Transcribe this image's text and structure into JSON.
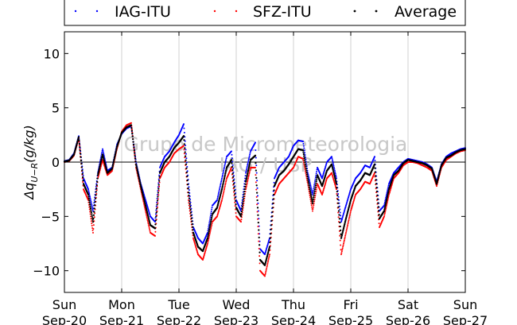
{
  "chart_data": {
    "type": "scatter",
    "title": "",
    "xlabel": "",
    "ylabel": "Δq_{U−R}(g/kg)",
    "ylabel_main": "Δq",
    "ylabel_sub": "U−R",
    "ylabel_rest": "(g/kg)",
    "ylim": [
      -12,
      12
    ],
    "xlim": [
      "2015-09-20",
      "2015-09-27"
    ],
    "yticks": [
      -10,
      -5,
      0,
      5,
      10
    ],
    "yticklabels": [
      "−10",
      "−5",
      "0",
      "5",
      "10"
    ],
    "xticks": [
      {
        "day": "Sun",
        "date": "Sep-20"
      },
      {
        "day": "Mon",
        "date": "Sep-21"
      },
      {
        "day": "Tue",
        "date": "Sep-22"
      },
      {
        "day": "Wed",
        "date": "Sep-23"
      },
      {
        "day": "Thu",
        "date": "Sep-24"
      },
      {
        "day": "Fri",
        "date": "Sep-25"
      },
      {
        "day": "Sat",
        "date": "Sep-26"
      },
      {
        "day": "Sun",
        "date": "Sep-27"
      }
    ],
    "vertical_grid": true,
    "zero_line": true,
    "legend_position": "top",
    "watermark_lines": [
      "Grupo de Micrometeorologia",
      "IAG / USP"
    ],
    "series": [
      {
        "name": "IAG-ITU",
        "color": "#0000ff",
        "x": [
          "2015-09-20 00:00",
          "2015-09-20 02:00",
          "2015-09-20 04:00",
          "2015-09-20 06:00",
          "2015-09-20 08:00",
          "2015-09-20 10:00",
          "2015-09-20 12:00",
          "2015-09-20 14:00",
          "2015-09-20 16:00",
          "2015-09-20 18:00",
          "2015-09-20 20:00",
          "2015-09-20 22:00",
          "2015-09-21 00:00",
          "2015-09-21 02:00",
          "2015-09-21 04:00",
          "2015-09-21 06:00",
          "2015-09-21 08:00",
          "2015-09-21 10:00",
          "2015-09-21 12:00",
          "2015-09-21 14:00",
          "2015-09-21 16:00",
          "2015-09-21 18:00",
          "2015-09-21 20:00",
          "2015-09-21 22:00",
          "2015-09-22 00:00",
          "2015-09-22 02:00",
          "2015-09-22 04:00",
          "2015-09-22 06:00",
          "2015-09-22 08:00",
          "2015-09-22 10:00",
          "2015-09-22 12:00",
          "2015-09-22 14:00",
          "2015-09-22 16:00",
          "2015-09-22 18:00",
          "2015-09-22 20:00",
          "2015-09-22 22:00",
          "2015-09-23 00:00",
          "2015-09-23 02:00",
          "2015-09-23 04:00",
          "2015-09-23 06:00",
          "2015-09-23 08:00",
          "2015-09-23 10:00",
          "2015-09-23 12:00",
          "2015-09-23 14:00",
          "2015-09-23 16:00",
          "2015-09-23 18:00",
          "2015-09-23 20:00",
          "2015-09-23 22:00",
          "2015-09-24 00:00",
          "2015-09-24 02:00",
          "2015-09-24 04:00",
          "2015-09-24 06:00",
          "2015-09-24 08:00",
          "2015-09-24 10:00",
          "2015-09-24 12:00",
          "2015-09-24 14:00",
          "2015-09-24 16:00",
          "2015-09-24 18:00",
          "2015-09-24 20:00",
          "2015-09-24 22:00",
          "2015-09-25 00:00",
          "2015-09-25 02:00",
          "2015-09-25 04:00",
          "2015-09-25 06:00",
          "2015-09-25 08:00",
          "2015-09-25 10:00",
          "2015-09-25 12:00",
          "2015-09-25 14:00",
          "2015-09-25 16:00",
          "2015-09-25 18:00",
          "2015-09-25 20:00",
          "2015-09-25 22:00",
          "2015-09-26 00:00",
          "2015-09-26 02:00",
          "2015-09-26 04:00",
          "2015-09-26 06:00",
          "2015-09-26 08:00",
          "2015-09-26 10:00",
          "2015-09-26 12:00",
          "2015-09-26 14:00",
          "2015-09-26 16:00",
          "2015-09-26 18:00",
          "2015-09-26 20:00",
          "2015-09-26 22:00",
          "2015-09-27 00:00"
        ],
        "y": [
          0.1,
          0.2,
          0.8,
          2.4,
          -1.5,
          -2.5,
          -4.5,
          -1.0,
          1.2,
          -0.8,
          -0.5,
          1.6,
          2.6,
          3.1,
          3.3,
          0.0,
          -2.0,
          -3.5,
          -5.0,
          -5.5,
          -0.5,
          0.5,
          1.0,
          1.8,
          2.5,
          3.5,
          -2.0,
          -6.0,
          -7.0,
          -7.5,
          -6.5,
          -4.0,
          -3.5,
          -1.5,
          0.5,
          1.0,
          -3.5,
          -4.5,
          -1.0,
          1.0,
          1.8,
          -8.0,
          -8.5,
          -7.0,
          -1.5,
          -0.5,
          0.0,
          0.5,
          1.5,
          2.0,
          1.9,
          -1.0,
          -3.0,
          -0.5,
          -1.5,
          0.0,
          0.5,
          -1.5,
          -5.5,
          -4.0,
          -2.5,
          -1.5,
          -1.0,
          -0.3,
          -0.5,
          0.5,
          -4.5,
          -4.0,
          -2.0,
          -1.0,
          -0.5,
          0.0,
          0.3,
          0.2,
          0.1,
          0.0,
          -0.2,
          -0.5,
          -1.8,
          -0.2,
          0.5,
          0.8,
          1.0,
          1.2,
          1.3
        ]
      },
      {
        "name": "SFZ-ITU",
        "color": "#ff0000",
        "x": [
          "2015-09-20 00:00",
          "2015-09-20 02:00",
          "2015-09-20 04:00",
          "2015-09-20 06:00",
          "2015-09-20 08:00",
          "2015-09-20 10:00",
          "2015-09-20 12:00",
          "2015-09-20 14:00",
          "2015-09-20 16:00",
          "2015-09-20 18:00",
          "2015-09-20 20:00",
          "2015-09-20 22:00",
          "2015-09-21 00:00",
          "2015-09-21 02:00",
          "2015-09-21 04:00",
          "2015-09-21 06:00",
          "2015-09-21 08:00",
          "2015-09-21 10:00",
          "2015-09-21 12:00",
          "2015-09-21 14:00",
          "2015-09-21 16:00",
          "2015-09-21 18:00",
          "2015-09-21 20:00",
          "2015-09-21 22:00",
          "2015-09-22 00:00",
          "2015-09-22 02:00",
          "2015-09-22 04:00",
          "2015-09-22 06:00",
          "2015-09-22 08:00",
          "2015-09-22 10:00",
          "2015-09-22 12:00",
          "2015-09-22 14:00",
          "2015-09-22 16:00",
          "2015-09-22 18:00",
          "2015-09-22 20:00",
          "2015-09-22 22:00",
          "2015-09-23 00:00",
          "2015-09-23 02:00",
          "2015-09-23 04:00",
          "2015-09-23 06:00",
          "2015-09-23 08:00",
          "2015-09-23 10:00",
          "2015-09-23 12:00",
          "2015-09-23 14:00",
          "2015-09-23 16:00",
          "2015-09-23 18:00",
          "2015-09-23 20:00",
          "2015-09-23 22:00",
          "2015-09-24 00:00",
          "2015-09-24 02:00",
          "2015-09-24 04:00",
          "2015-09-24 06:00",
          "2015-09-24 08:00",
          "2015-09-24 10:00",
          "2015-09-24 12:00",
          "2015-09-24 14:00",
          "2015-09-24 16:00",
          "2015-09-24 18:00",
          "2015-09-24 20:00",
          "2015-09-24 22:00",
          "2015-09-25 00:00",
          "2015-09-25 02:00",
          "2015-09-25 04:00",
          "2015-09-25 06:00",
          "2015-09-25 08:00",
          "2015-09-25 10:00",
          "2015-09-25 12:00",
          "2015-09-25 14:00",
          "2015-09-25 16:00",
          "2015-09-25 18:00",
          "2015-09-25 20:00",
          "2015-09-25 22:00",
          "2015-09-26 00:00",
          "2015-09-26 02:00",
          "2015-09-26 04:00",
          "2015-09-26 06:00",
          "2015-09-26 08:00",
          "2015-09-26 10:00",
          "2015-09-26 12:00",
          "2015-09-26 14:00",
          "2015-09-26 16:00",
          "2015-09-26 18:00",
          "2015-09-26 20:00",
          "2015-09-26 22:00",
          "2015-09-27 00:00"
        ],
        "y": [
          0.0,
          0.1,
          0.6,
          2.2,
          -2.5,
          -3.5,
          -6.5,
          -1.5,
          0.2,
          -1.2,
          -0.8,
          1.2,
          2.8,
          3.4,
          3.6,
          -0.5,
          -2.5,
          -4.5,
          -6.5,
          -6.8,
          -1.5,
          -0.5,
          0.0,
          0.8,
          1.2,
          1.5,
          -3.5,
          -7.0,
          -8.5,
          -9.0,
          -7.5,
          -5.5,
          -5.0,
          -3.5,
          -1.5,
          -0.5,
          -5.0,
          -5.5,
          -2.5,
          -0.5,
          -0.5,
          -10.0,
          -10.5,
          -8.5,
          -3.0,
          -2.0,
          -1.5,
          -1.0,
          -0.5,
          0.5,
          0.3,
          -2.0,
          -4.5,
          -2.0,
          -3.0,
          -1.5,
          -1.0,
          -2.5,
          -8.5,
          -6.5,
          -4.5,
          -3.0,
          -2.5,
          -1.8,
          -2.0,
          -1.0,
          -6.0,
          -5.0,
          -3.0,
          -1.5,
          -1.0,
          -0.3,
          0.0,
          0.0,
          -0.1,
          -0.3,
          -0.5,
          -0.8,
          -2.2,
          -0.5,
          0.2,
          0.5,
          0.8,
          1.0,
          1.1
        ]
      },
      {
        "name": "Average",
        "color": "#000000",
        "x": [
          "2015-09-20 00:00",
          "2015-09-20 02:00",
          "2015-09-20 04:00",
          "2015-09-20 06:00",
          "2015-09-20 08:00",
          "2015-09-20 10:00",
          "2015-09-20 12:00",
          "2015-09-20 14:00",
          "2015-09-20 16:00",
          "2015-09-20 18:00",
          "2015-09-20 20:00",
          "2015-09-20 22:00",
          "2015-09-21 00:00",
          "2015-09-21 02:00",
          "2015-09-21 04:00",
          "2015-09-21 06:00",
          "2015-09-21 08:00",
          "2015-09-21 10:00",
          "2015-09-21 12:00",
          "2015-09-21 14:00",
          "2015-09-21 16:00",
          "2015-09-21 18:00",
          "2015-09-21 20:00",
          "2015-09-21 22:00",
          "2015-09-22 00:00",
          "2015-09-22 02:00",
          "2015-09-22 04:00",
          "2015-09-22 06:00",
          "2015-09-22 08:00",
          "2015-09-22 10:00",
          "2015-09-22 12:00",
          "2015-09-22 14:00",
          "2015-09-22 16:00",
          "2015-09-22 18:00",
          "2015-09-22 20:00",
          "2015-09-22 22:00",
          "2015-09-23 00:00",
          "2015-09-23 02:00",
          "2015-09-23 04:00",
          "2015-09-23 06:00",
          "2015-09-23 08:00",
          "2015-09-23 10:00",
          "2015-09-23 12:00",
          "2015-09-23 14:00",
          "2015-09-23 16:00",
          "2015-09-23 18:00",
          "2015-09-23 20:00",
          "2015-09-23 22:00",
          "2015-09-24 00:00",
          "2015-09-24 02:00",
          "2015-09-24 04:00",
          "2015-09-24 06:00",
          "2015-09-24 08:00",
          "2015-09-24 10:00",
          "2015-09-24 12:00",
          "2015-09-24 14:00",
          "2015-09-24 16:00",
          "2015-09-24 18:00",
          "2015-09-24 20:00",
          "2015-09-24 22:00",
          "2015-09-25 00:00",
          "2015-09-25 02:00",
          "2015-09-25 04:00",
          "2015-09-25 06:00",
          "2015-09-25 08:00",
          "2015-09-25 10:00",
          "2015-09-25 12:00",
          "2015-09-25 14:00",
          "2015-09-25 16:00",
          "2015-09-25 18:00",
          "2015-09-25 20:00",
          "2015-09-25 22:00",
          "2015-09-26 00:00",
          "2015-09-26 02:00",
          "2015-09-26 04:00",
          "2015-09-26 06:00",
          "2015-09-26 08:00",
          "2015-09-26 10:00",
          "2015-09-26 12:00",
          "2015-09-26 14:00",
          "2015-09-26 16:00",
          "2015-09-26 18:00",
          "2015-09-26 20:00",
          "2015-09-26 22:00",
          "2015-09-27 00:00"
        ],
        "y": [
          0.05,
          0.15,
          0.7,
          2.3,
          -2.0,
          -3.0,
          -5.5,
          -1.2,
          0.7,
          -1.0,
          -0.6,
          1.4,
          2.7,
          3.2,
          3.4,
          -0.2,
          -2.2,
          -4.0,
          -5.8,
          -6.1,
          -1.0,
          0.0,
          0.5,
          1.3,
          1.8,
          2.4,
          -2.8,
          -6.5,
          -7.8,
          -8.2,
          -7.0,
          -4.8,
          -4.2,
          -2.5,
          -0.5,
          0.2,
          -4.2,
          -5.0,
          -1.8,
          0.2,
          0.6,
          -9.0,
          -9.5,
          -7.8,
          -2.2,
          -1.2,
          -0.8,
          -0.2,
          0.5,
          1.2,
          1.1,
          -1.5,
          -3.8,
          -1.2,
          -2.2,
          -0.8,
          -0.2,
          -2.0,
          -7.0,
          -5.2,
          -3.5,
          -2.2,
          -1.7,
          -1.0,
          -1.2,
          -0.2,
          -5.2,
          -4.5,
          -2.5,
          -1.2,
          -0.8,
          -0.1,
          0.2,
          0.1,
          0.0,
          -0.1,
          -0.3,
          -0.6,
          -2.0,
          -0.3,
          0.4,
          0.6,
          0.9,
          1.1,
          1.2
        ]
      }
    ]
  }
}
